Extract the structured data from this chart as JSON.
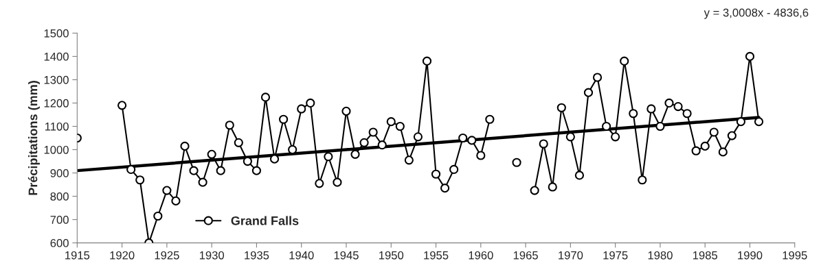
{
  "chart_data": {
    "type": "line",
    "ylabel": "Précipitations (mm)",
    "x": [
      1915,
      1916,
      1917,
      1918,
      1919,
      1920,
      1921,
      1922,
      1923,
      1924,
      1925,
      1926,
      1927,
      1928,
      1929,
      1930,
      1931,
      1932,
      1933,
      1934,
      1935,
      1936,
      1937,
      1938,
      1939,
      1940,
      1941,
      1942,
      1943,
      1944,
      1945,
      1946,
      1947,
      1948,
      1949,
      1950,
      1951,
      1952,
      1953,
      1954,
      1955,
      1956,
      1957,
      1958,
      1959,
      1960,
      1961,
      1962,
      1963,
      1964,
      1965,
      1966,
      1967,
      1968,
      1969,
      1970,
      1971,
      1972,
      1973,
      1974,
      1975,
      1976,
      1977,
      1978,
      1979,
      1980,
      1981,
      1982,
      1983,
      1984,
      1985,
      1986,
      1987,
      1988,
      1989,
      1990,
      1991
    ],
    "series": [
      {
        "name": "Grand Falls",
        "color": "#000000",
        "marker": "circle",
        "values": [
          1050,
          null,
          null,
          null,
          null,
          1190,
          915,
          870,
          600,
          715,
          825,
          780,
          1015,
          910,
          860,
          980,
          910,
          1105,
          1030,
          950,
          910,
          1225,
          960,
          1130,
          1000,
          1175,
          1200,
          855,
          970,
          860,
          1165,
          980,
          1030,
          1075,
          1020,
          1120,
          1100,
          955,
          1055,
          1380,
          895,
          835,
          915,
          1050,
          1040,
          975,
          1130,
          null,
          null,
          945,
          null,
          825,
          1025,
          840,
          1180,
          1055,
          890,
          1245,
          1310,
          1100,
          1055,
          1380,
          1155,
          870,
          1175,
          1100,
          1200,
          1185,
          1155,
          995,
          1015,
          1075,
          990,
          1060,
          1120,
          1400,
          1120
        ]
      },
      {
        "type": "line",
        "color": "#000000",
        "marker": "none",
        "x": [
          1915,
          1991
        ],
        "values": [
          910,
          1138
        ]
      }
    ],
    "xlim": [
      1915,
      1995
    ],
    "xticks": [
      1915,
      1920,
      1925,
      1930,
      1935,
      1940,
      1945,
      1950,
      1955,
      1960,
      1965,
      1970,
      1975,
      1980,
      1985,
      1990,
      1995
    ],
    "ylim": [
      600,
      1500
    ],
    "yticks": [
      600,
      700,
      800,
      900,
      1000,
      1100,
      1200,
      1300,
      1400,
      1500
    ],
    "grid": false,
    "legend": "bottom left",
    "annotations": [
      "y = 3,0008x - 4836,6"
    ]
  }
}
